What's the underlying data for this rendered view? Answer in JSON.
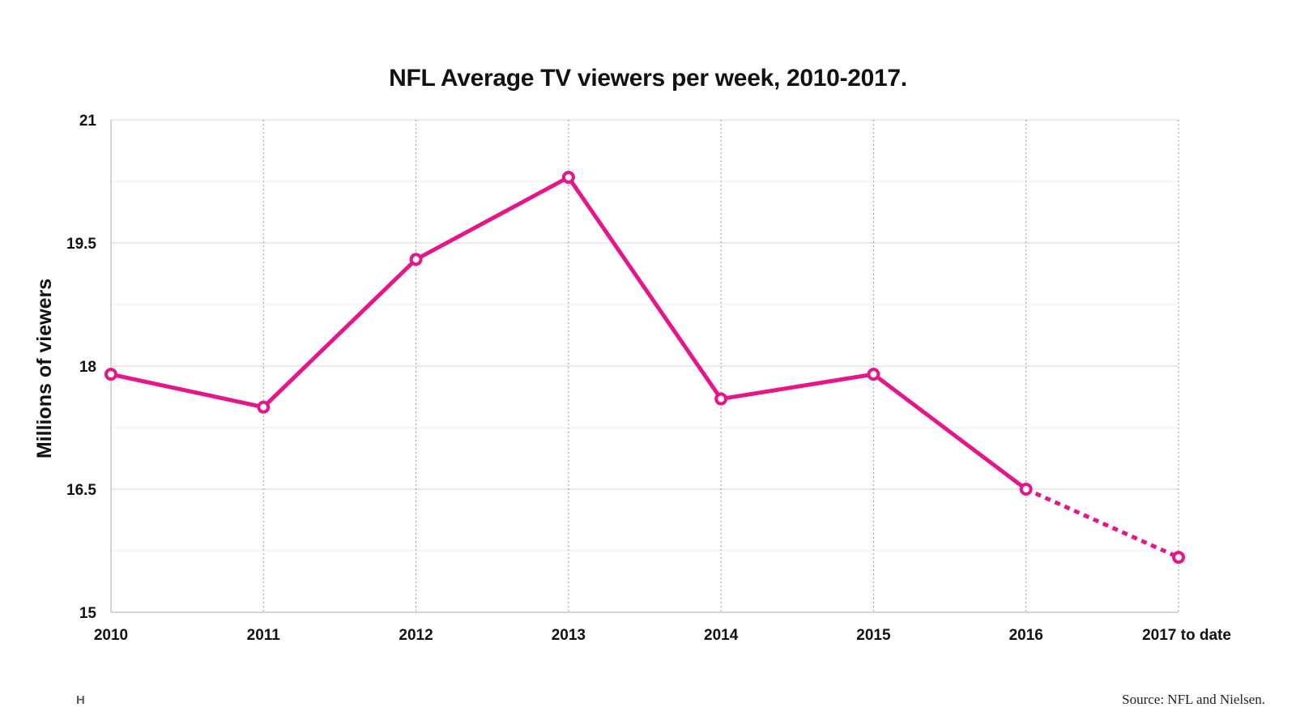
{
  "chart_data": {
    "type": "line",
    "title": "NFL Average TV viewers per week, 2010-2017.",
    "xlabel": "",
    "ylabel": "Millions of viewers",
    "categories": [
      "2010",
      "2011",
      "2012",
      "2013",
      "2014",
      "2015",
      "2016",
      "2017 to date"
    ],
    "series": [
      {
        "values": [
          17.9,
          17.5,
          19.3,
          20.3,
          17.6,
          17.9,
          16.5,
          15.67
        ],
        "style_by_segment": [
          "solid",
          "solid",
          "solid",
          "solid",
          "solid",
          "solid",
          "dotted"
        ]
      }
    ],
    "ylim": [
      15,
      21
    ],
    "yticks": [
      "15",
      "16.5",
      "18",
      "19.5",
      "21"
    ],
    "grid": true,
    "line_color": "#e5168a",
    "grid_color": "#d9d9d9"
  },
  "footer": {
    "logo": "H",
    "source": "Source: NFL and Nielsen."
  }
}
